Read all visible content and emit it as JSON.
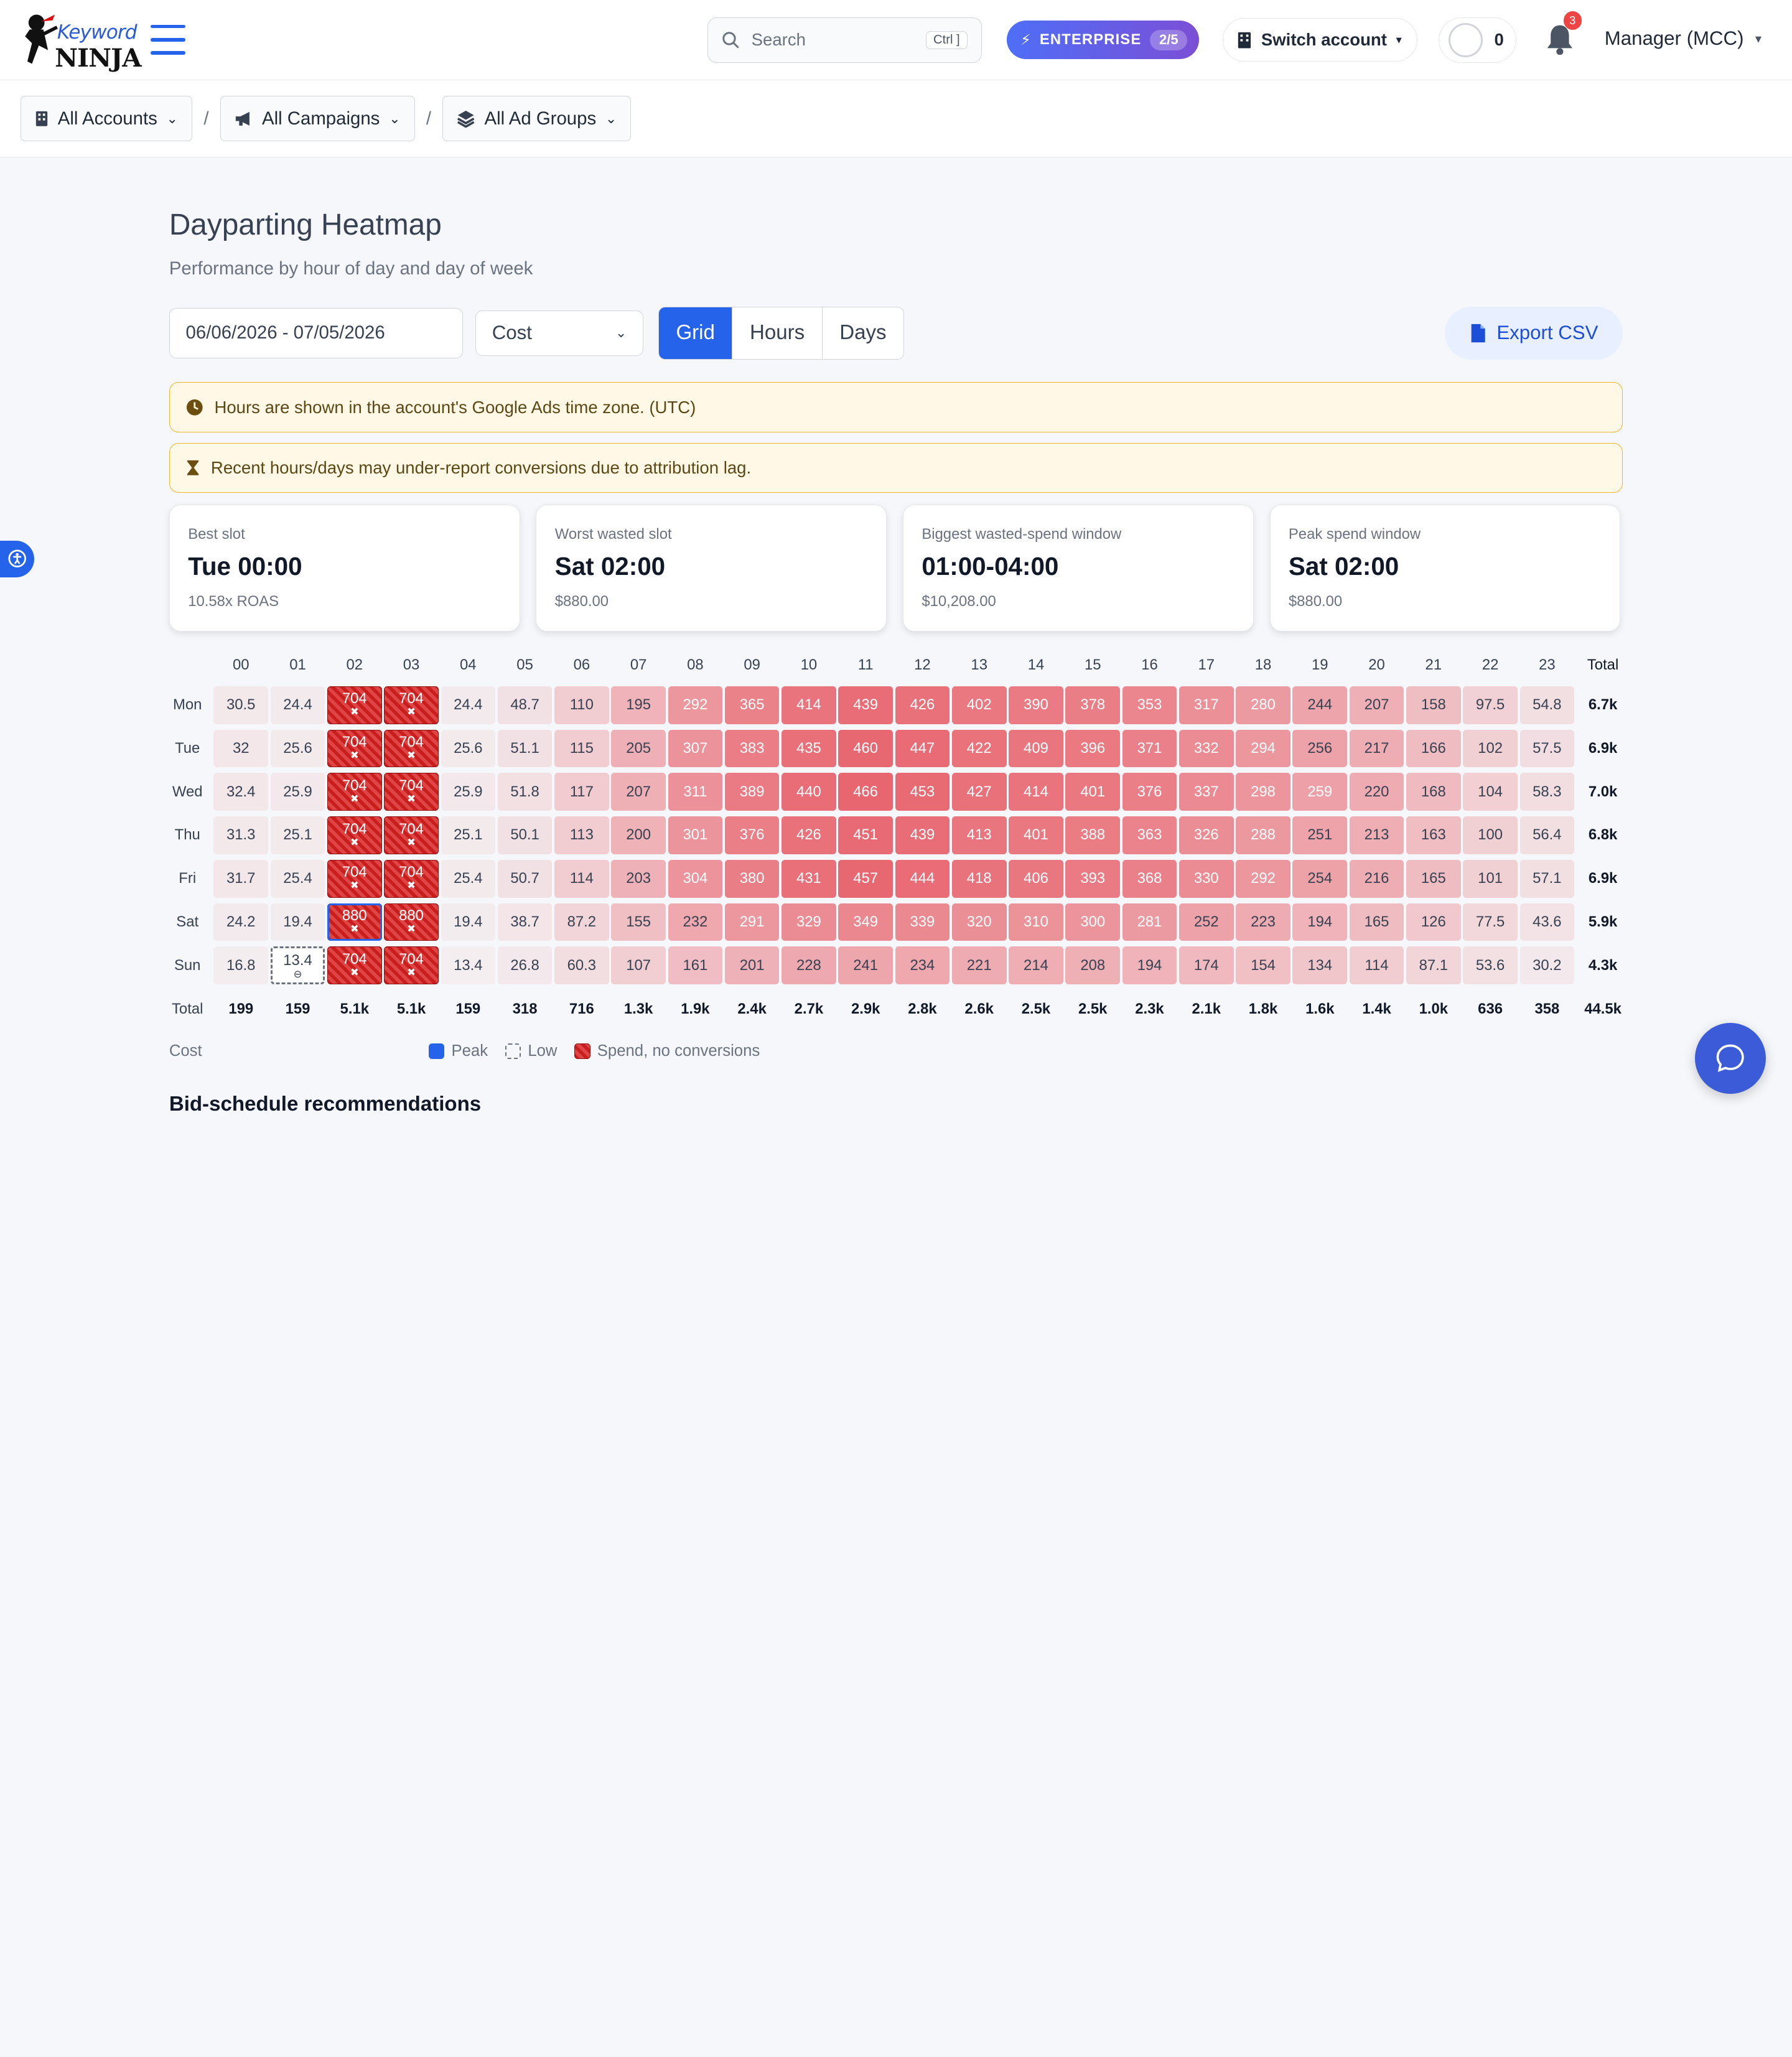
{
  "app": {
    "logo_text_top": "Keyword",
    "logo_text_bottom": "NINJA",
    "accent_color": "#2563eb"
  },
  "topbar": {
    "search_placeholder": "Search",
    "search_shortcut": "Ctrl ]",
    "plan_label": "ENTERPRISE",
    "plan_usage": "2/5",
    "switch_account_label": "Switch account",
    "credits_count": "0",
    "notification_count": "3",
    "user_label": "Manager (MCC)"
  },
  "breadcrumb": {
    "accounts": "All Accounts",
    "campaigns": "All Campaigns",
    "ad_groups": "All Ad Groups",
    "separator": "/"
  },
  "page": {
    "title": "Dayparting Heatmap",
    "subtitle": "Performance by hour of day and day of week",
    "date_range": "06/06/2026 - 07/05/2026",
    "metric_selected": "Cost",
    "view_tabs": [
      "Grid",
      "Hours",
      "Days"
    ],
    "active_view": "Grid",
    "export_label": "Export CSV",
    "notice_timezone": "Hours are shown in the account's Google Ads time zone. (UTC)",
    "notice_lag": "Recent hours/days may under-report conversions due to attribution lag."
  },
  "cards": [
    {
      "label": "Best slot",
      "value": "Tue 00:00",
      "sub": "10.58x ROAS"
    },
    {
      "label": "Worst wasted slot",
      "value": "Sat 02:00",
      "sub": "$880.00"
    },
    {
      "label": "Biggest wasted-spend window",
      "value": "01:00-04:00",
      "sub": "$10,208.00"
    },
    {
      "label": "Peak spend window",
      "value": "Sat 02:00",
      "sub": "$880.00"
    }
  ],
  "heatmap": {
    "hours": [
      "00",
      "01",
      "02",
      "03",
      "04",
      "05",
      "06",
      "07",
      "08",
      "09",
      "10",
      "11",
      "12",
      "13",
      "14",
      "15",
      "16",
      "17",
      "18",
      "19",
      "20",
      "21",
      "22",
      "23"
    ],
    "total_label": "Total",
    "rows": [
      {
        "day": "Mon",
        "values": [
          "30.5",
          "24.4",
          "704",
          "704",
          "24.4",
          "48.7",
          "110",
          "195",
          "292",
          "365",
          "414",
          "439",
          "426",
          "402",
          "390",
          "378",
          "353",
          "317",
          "280",
          "244",
          "207",
          "158",
          "97.5",
          "54.8"
        ],
        "total": "6.7k"
      },
      {
        "day": "Tue",
        "values": [
          "32",
          "25.6",
          "704",
          "704",
          "25.6",
          "51.1",
          "115",
          "205",
          "307",
          "383",
          "435",
          "460",
          "447",
          "422",
          "409",
          "396",
          "371",
          "332",
          "294",
          "256",
          "217",
          "166",
          "102",
          "57.5"
        ],
        "total": "6.9k"
      },
      {
        "day": "Wed",
        "values": [
          "32.4",
          "25.9",
          "704",
          "704",
          "25.9",
          "51.8",
          "117",
          "207",
          "311",
          "389",
          "440",
          "466",
          "453",
          "427",
          "414",
          "401",
          "376",
          "337",
          "298",
          "259",
          "220",
          "168",
          "104",
          "58.3"
        ],
        "total": "7.0k"
      },
      {
        "day": "Thu",
        "values": [
          "31.3",
          "25.1",
          "704",
          "704",
          "25.1",
          "50.1",
          "113",
          "200",
          "301",
          "376",
          "426",
          "451",
          "439",
          "413",
          "401",
          "388",
          "363",
          "326",
          "288",
          "251",
          "213",
          "163",
          "100",
          "56.4"
        ],
        "total": "6.8k"
      },
      {
        "day": "Fri",
        "values": [
          "31.7",
          "25.4",
          "704",
          "704",
          "25.4",
          "50.7",
          "114",
          "203",
          "304",
          "380",
          "431",
          "457",
          "444",
          "418",
          "406",
          "393",
          "368",
          "330",
          "292",
          "254",
          "216",
          "165",
          "101",
          "57.1"
        ],
        "total": "6.9k"
      },
      {
        "day": "Sat",
        "values": [
          "24.2",
          "19.4",
          "880",
          "880",
          "19.4",
          "38.7",
          "87.2",
          "155",
          "232",
          "291",
          "329",
          "349",
          "339",
          "320",
          "310",
          "300",
          "281",
          "252",
          "223",
          "194",
          "165",
          "126",
          "77.5",
          "43.6"
        ],
        "total": "5.9k"
      },
      {
        "day": "Sun",
        "values": [
          "16.8",
          "13.4",
          "704",
          "704",
          "13.4",
          "26.8",
          "60.3",
          "107",
          "161",
          "201",
          "228",
          "241",
          "234",
          "221",
          "214",
          "208",
          "194",
          "174",
          "154",
          "134",
          "114",
          "87.1",
          "53.6",
          "30.2"
        ],
        "total": "4.3k"
      }
    ],
    "column_totals": [
      "199",
      "159",
      "5.1k",
      "5.1k",
      "159",
      "318",
      "716",
      "1.3k",
      "1.9k",
      "2.4k",
      "2.7k",
      "2.9k",
      "2.8k",
      "2.6k",
      "2.5k",
      "2.5k",
      "2.3k",
      "2.1k",
      "1.8k",
      "1.6k",
      "1.4k",
      "1.0k",
      "636",
      "358"
    ],
    "grand_total": "44.5k",
    "wasted_hours": [
      "02",
      "03"
    ],
    "peak_cell": {
      "day": "Sat",
      "hour": "02"
    },
    "low_cell": {
      "day": "Sun",
      "hour": "01"
    }
  },
  "legend": {
    "metric": "Cost",
    "peak": "Peak",
    "low": "Low",
    "waste": "Spend, no conversions",
    "peak_color": "#2563eb",
    "waste_color": "#c81e1e"
  },
  "recommendations_title": "Bid-schedule recommendations"
}
